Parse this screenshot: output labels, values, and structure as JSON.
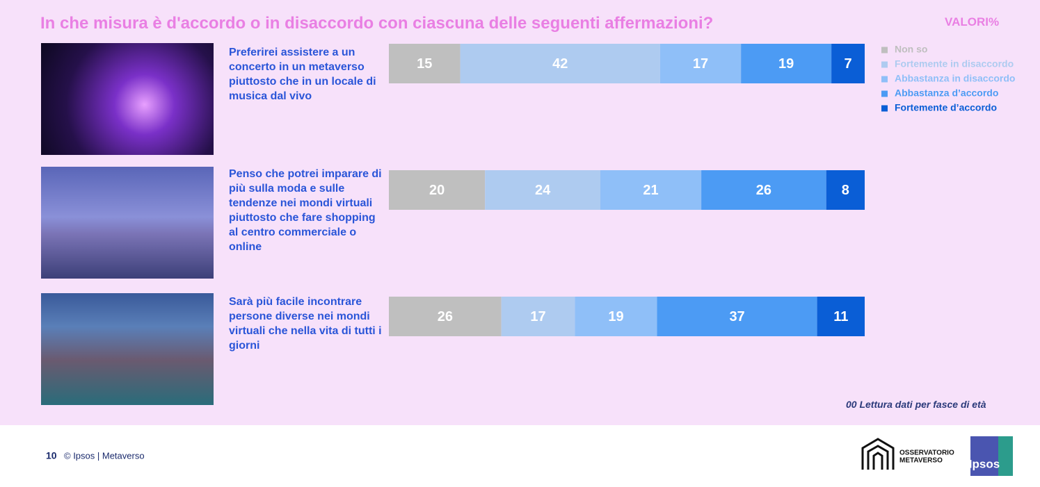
{
  "chart_data": {
    "type": "bar",
    "stacked": true,
    "orientation": "horizontal",
    "title": "In che misura è d'accordo o in disaccordo con ciascuna delle seguenti affermazioni?",
    "subtitle": "VALORI%",
    "categories": [
      "Preferirei assistere a un concerto in un metaverso piuttosto che in un locale di musica dal vivo",
      "Penso che potrei imparare di più sulla moda e sulle tendenze nei mondi virtuali piuttosto che fare shopping al centro commerciale o online",
      "Sarà più facile incontrare persone diverse nei mondi virtuali che nella vita di tutti i giorni"
    ],
    "series": [
      {
        "name": "Non so",
        "color": "#bfbfbf",
        "values": [
          15,
          20,
          26
        ]
      },
      {
        "name": "Fortemente in disaccordo",
        "color": "#aecbf0",
        "values": [
          42,
          24,
          17
        ]
      },
      {
        "name": "Abbastanza in disaccordo",
        "color": "#8fbff8",
        "values": [
          17,
          21,
          19
        ]
      },
      {
        "name": "Abbastanza d’accordo",
        "color": "#4c9bf4",
        "values": [
          19,
          26,
          37
        ]
      },
      {
        "name": "Fortemente d’accordo",
        "color": "#0a5ed6",
        "values": [
          7,
          8,
          11
        ]
      }
    ],
    "legend": "right",
    "note": "00 Lettura dati per fasce di età"
  },
  "footer": {
    "page": "10",
    "text": "© Ipsos | Metaverso",
    "logo_text": [
      "OSSERVATORIO",
      "METAVERSO"
    ],
    "brand": "Ipsos"
  }
}
